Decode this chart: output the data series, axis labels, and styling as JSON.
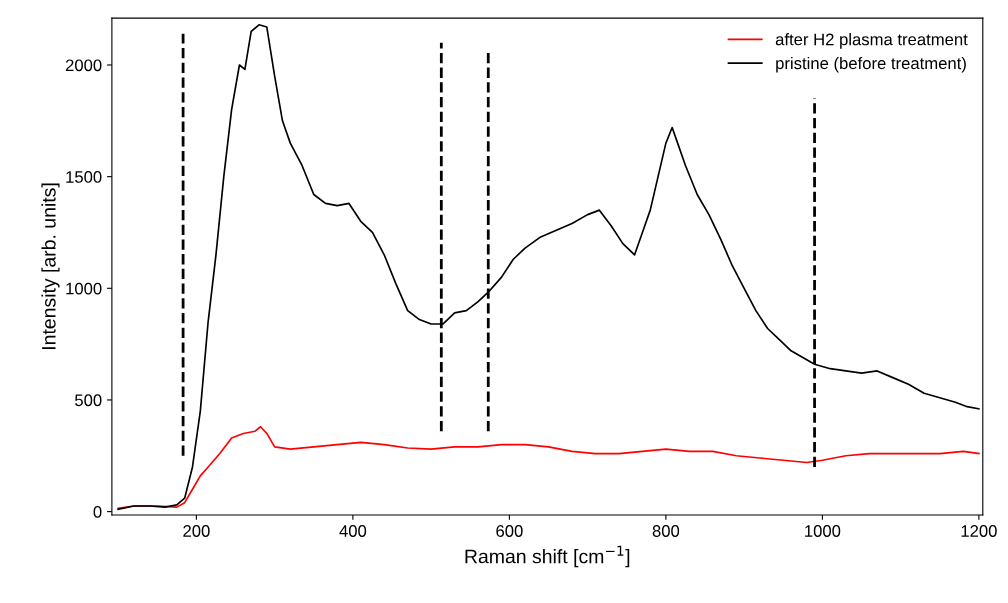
{
  "chart_data": {
    "type": "line",
    "xlabel": "Raman shift [cm$^{−1}$]",
    "ylabel": "Intensity [arb. units]",
    "xlim": [
      92,
      1205
    ],
    "ylim": [
      -15,
      2210
    ],
    "xticks": [
      200,
      400,
      600,
      800,
      1000,
      1200
    ],
    "yticks": [
      0,
      500,
      1000,
      1500,
      2000
    ],
    "grid": false,
    "legend": "top right",
    "marker": "none",
    "line_style": "solid",
    "series": [
      {
        "name": "after H2 plasma treatment",
        "color": "#ff0000",
        "x": [
          100,
          120,
          150,
          175,
          185,
          195,
          205,
          215,
          230,
          245,
          260,
          275,
          282,
          290,
          300,
          320,
          350,
          380,
          410,
          440,
          470,
          500,
          530,
          560,
          590,
          620,
          650,
          680,
          710,
          740,
          770,
          800,
          830,
          860,
          890,
          920,
          950,
          980,
          1000,
          1030,
          1060,
          1090,
          1120,
          1150,
          1180,
          1200
        ],
        "values": [
          15,
          25,
          25,
          20,
          40,
          100,
          160,
          200,
          260,
          330,
          350,
          360,
          380,
          350,
          290,
          280,
          290,
          300,
          310,
          300,
          285,
          280,
          290,
          290,
          300,
          300,
          290,
          270,
          260,
          260,
          270,
          280,
          270,
          270,
          250,
          240,
          230,
          220,
          230,
          250,
          260,
          260,
          260,
          260,
          270,
          260
        ]
      },
      {
        "name": "pristine (before treatment)",
        "color": "#000000",
        "x": [
          100,
          120,
          140,
          160,
          175,
          185,
          195,
          205,
          215,
          225,
          235,
          245,
          255,
          262,
          270,
          280,
          290,
          300,
          310,
          320,
          335,
          350,
          365,
          380,
          395,
          410,
          425,
          440,
          455,
          470,
          485,
          500,
          515,
          530,
          545,
          560,
          575,
          590,
          605,
          620,
          640,
          660,
          680,
          700,
          715,
          730,
          745,
          760,
          770,
          780,
          790,
          800,
          808,
          815,
          825,
          840,
          855,
          870,
          885,
          900,
          915,
          930,
          945,
          960,
          975,
          990,
          1010,
          1030,
          1050,
          1070,
          1090,
          1110,
          1130,
          1150,
          1170,
          1185,
          1200
        ],
        "values": [
          10,
          25,
          25,
          20,
          30,
          60,
          200,
          450,
          850,
          1150,
          1500,
          1800,
          2000,
          1980,
          2150,
          2180,
          2170,
          1950,
          1750,
          1650,
          1550,
          1420,
          1380,
          1370,
          1380,
          1300,
          1250,
          1150,
          1020,
          900,
          860,
          840,
          840,
          890,
          900,
          940,
          990,
          1050,
          1130,
          1180,
          1230,
          1260,
          1290,
          1330,
          1350,
          1280,
          1200,
          1150,
          1250,
          1350,
          1500,
          1650,
          1720,
          1650,
          1550,
          1420,
          1330,
          1220,
          1100,
          1000,
          900,
          820,
          770,
          720,
          690,
          660,
          640,
          630,
          620,
          630,
          600,
          570,
          530,
          510,
          490,
          470,
          460
        ]
      },
      {
        "color": "#000000",
        "line_style": "dashed",
        "x": [
          183,
          183
        ],
        "values": [
          250,
          2140
        ]
      },
      {
        "color": "#000000",
        "line_style": "dashed",
        "x": [
          513,
          513
        ],
        "values": [
          360,
          2100
        ]
      },
      {
        "color": "#000000",
        "line_style": "dashed",
        "x": [
          573,
          573
        ],
        "values": [
          360,
          2060
        ]
      },
      {
        "color": "#000000",
        "line_style": "dashed",
        "x": [
          990,
          990
        ],
        "values": [
          200,
          1850
        ]
      }
    ]
  }
}
